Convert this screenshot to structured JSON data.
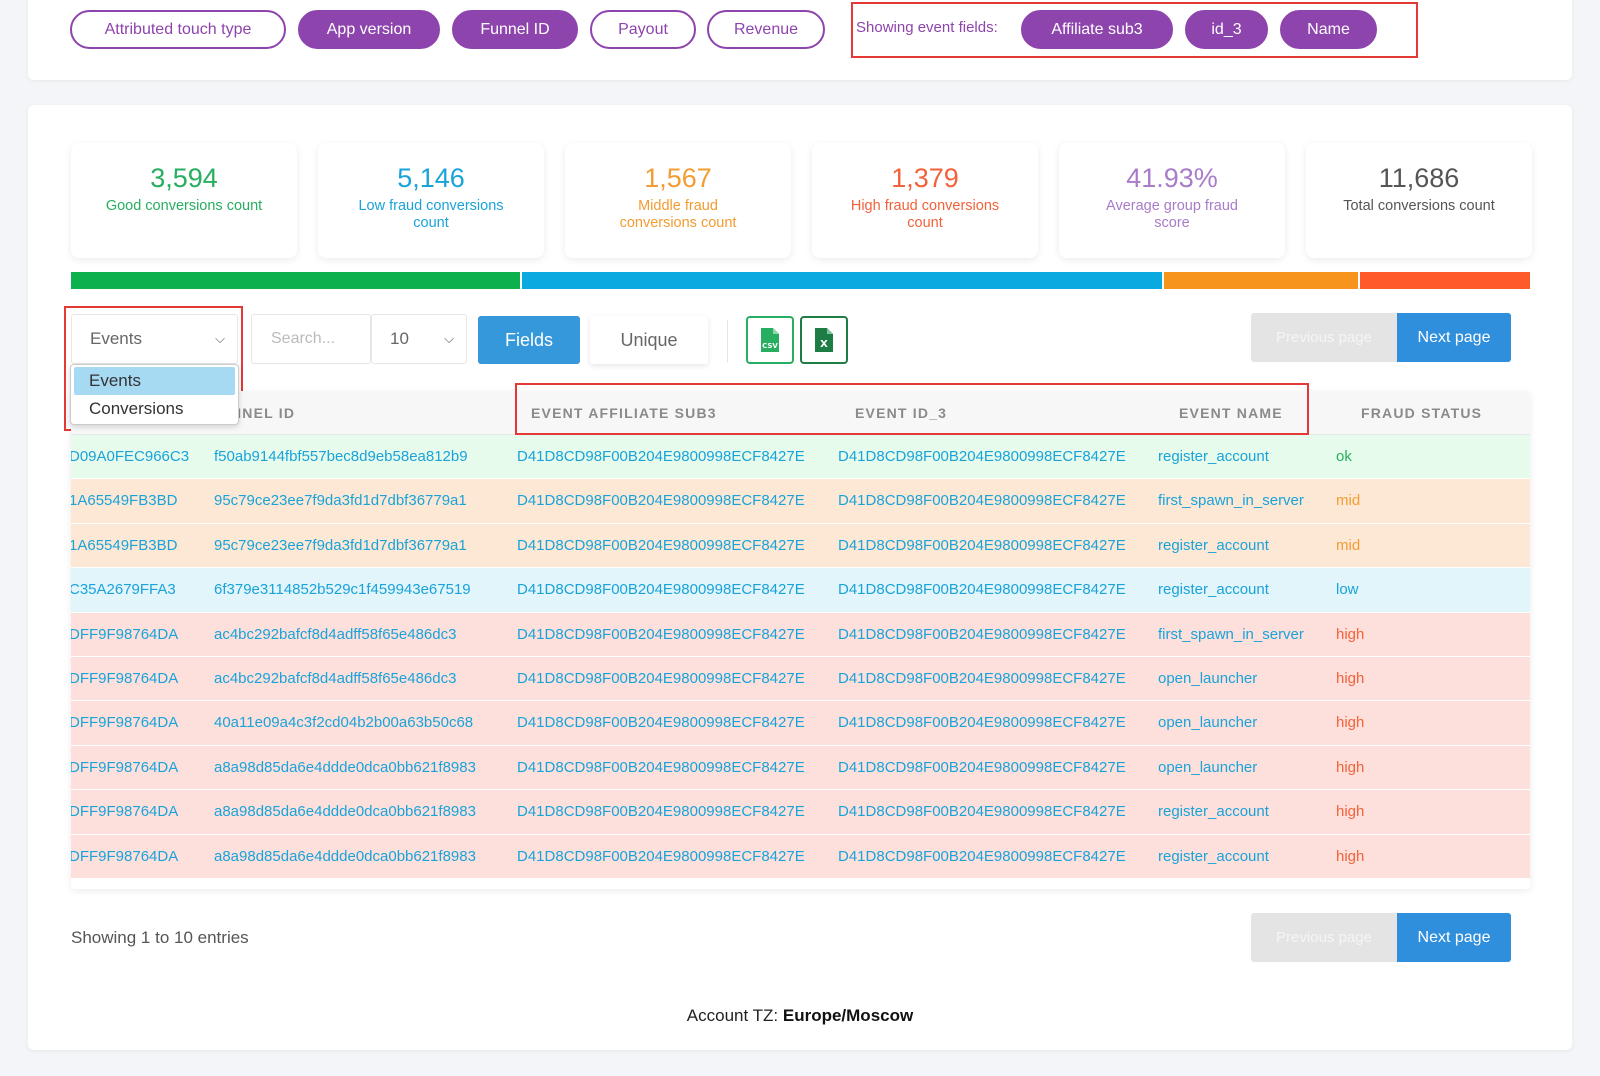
{
  "top_filters": {
    "pills": [
      {
        "label": "Attributed touch type",
        "active": false
      },
      {
        "label": "App version",
        "active": true
      },
      {
        "label": "Funnel ID",
        "active": true
      },
      {
        "label": "Payout",
        "active": false
      },
      {
        "label": "Revenue",
        "active": false
      }
    ],
    "showing_label": "Showing event fields:",
    "event_fields": [
      "Affiliate sub3",
      "id_3",
      "Name"
    ]
  },
  "stats": [
    {
      "value": "3,594",
      "label": "Good conversions count",
      "color": "#27ae60"
    },
    {
      "value": "5,146",
      "label": "Low fraud conversions count",
      "color": "#1aa3d9"
    },
    {
      "value": "1,567",
      "label": "Middle fraud conversions count",
      "color": "#f39c32"
    },
    {
      "value": "1,379",
      "label": "High fraud conversions count",
      "color": "#f2623a"
    },
    {
      "value": "41.93%",
      "label": "Average group fraud score",
      "color": "#a97cc9"
    },
    {
      "value": "11,686",
      "label": "Total conversions count",
      "color": "#555555"
    }
  ],
  "distribution_bar": [
    {
      "name": "good",
      "fraction": 0.3075,
      "color": "#0db14b"
    },
    {
      "name": "low",
      "fraction": 0.4404,
      "color": "#0aa9df"
    },
    {
      "name": "middle",
      "fraction": 0.1341,
      "color": "#f7941d"
    },
    {
      "name": "high",
      "fraction": 0.118,
      "color": "#fd5c2a"
    }
  ],
  "controls": {
    "type_select": "Events",
    "type_options": [
      "Events",
      "Conversions"
    ],
    "search_placeholder": "Search...",
    "per_page": "10",
    "fields_label": "Fields",
    "unique_label": "Unique",
    "csv_icon": "csv-file-icon",
    "xls_icon": "excel-file-icon",
    "prev_label": "Previous page",
    "next_label": "Next page"
  },
  "table": {
    "columns": [
      "",
      "NNEL ID",
      "EVENT AFFILIATE SUB3",
      "EVENT ID_3",
      "EVENT NAME",
      "FRAUD STATUS"
    ],
    "rows": [
      {
        "c0": "D09A0FEC966C3",
        "funnel": "f50ab9144fbf557bec8d9eb58ea812b9",
        "sub3": "D41D8CD98F00B204E9800998ECF8427E",
        "id3": "D41D8CD98F00B204E9800998ECF8427E",
        "name": "register_account",
        "status": "ok"
      },
      {
        "c0": "1A65549FB3BD",
        "funnel": "95c79ce23ee7f9da3fd1d7dbf36779a1",
        "sub3": "D41D8CD98F00B204E9800998ECF8427E",
        "id3": "D41D8CD98F00B204E9800998ECF8427E",
        "name": "first_spawn_in_server",
        "status": "mid"
      },
      {
        "c0": "1A65549FB3BD",
        "funnel": "95c79ce23ee7f9da3fd1d7dbf36779a1",
        "sub3": "D41D8CD98F00B204E9800998ECF8427E",
        "id3": "D41D8CD98F00B204E9800998ECF8427E",
        "name": "register_account",
        "status": "mid"
      },
      {
        "c0": "C35A2679FFA3",
        "funnel": "6f379e3114852b529c1f459943e67519",
        "sub3": "D41D8CD98F00B204E9800998ECF8427E",
        "id3": "D41D8CD98F00B204E9800998ECF8427E",
        "name": "register_account",
        "status": "low"
      },
      {
        "c0": "DFF9F98764DA",
        "funnel": "ac4bc292bafcf8d4adff58f65e486dc3",
        "sub3": "D41D8CD98F00B204E9800998ECF8427E",
        "id3": "D41D8CD98F00B204E9800998ECF8427E",
        "name": "first_spawn_in_server",
        "status": "high"
      },
      {
        "c0": "DFF9F98764DA",
        "funnel": "ac4bc292bafcf8d4adff58f65e486dc3",
        "sub3": "D41D8CD98F00B204E9800998ECF8427E",
        "id3": "D41D8CD98F00B204E9800998ECF8427E",
        "name": "open_launcher",
        "status": "high"
      },
      {
        "c0": "DFF9F98764DA",
        "funnel": "40a11e09a4c3f2cd04b2b00a63b50c68",
        "sub3": "D41D8CD98F00B204E9800998ECF8427E",
        "id3": "D41D8CD98F00B204E9800998ECF8427E",
        "name": "open_launcher",
        "status": "high"
      },
      {
        "c0": "DFF9F98764DA",
        "funnel": "a8a98d85da6e4ddde0dca0bb621f8983",
        "sub3": "D41D8CD98F00B204E9800998ECF8427E",
        "id3": "D41D8CD98F00B204E9800998ECF8427E",
        "name": "open_launcher",
        "status": "high"
      },
      {
        "c0": "DFF9F98764DA",
        "funnel": "a8a98d85da6e4ddde0dca0bb621f8983",
        "sub3": "D41D8CD98F00B204E9800998ECF8427E",
        "id3": "D41D8CD98F00B204E9800998ECF8427E",
        "name": "register_account",
        "status": "high"
      },
      {
        "c0": "DFF9F98764DA",
        "funnel": "a8a98d85da6e4ddde0dca0bb621f8983",
        "sub3": "D41D8CD98F00B204E9800998ECF8427E",
        "id3": "D41D8CD98F00B204E9800998ECF8427E",
        "name": "register_account",
        "status": "high"
      }
    ],
    "row_colors": {
      "ok": "#e6fbec",
      "mid": "#fde8d6",
      "low": "#e1f5fb",
      "high": "#fde0dc"
    },
    "status_colors": {
      "ok": "#27ae60",
      "mid": "#f39c32",
      "low": "#1aa3d9",
      "high": "#f2623a"
    },
    "cell_color": "#1aa3d9"
  },
  "footer": {
    "showing_entries": "Showing 1 to 10 entries",
    "tz_label": "Account TZ:",
    "tz_value": "Europe/Moscow"
  }
}
